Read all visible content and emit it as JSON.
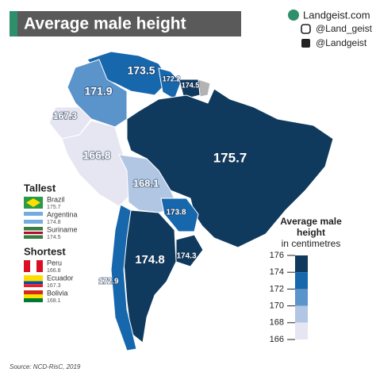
{
  "header": {
    "title": "Average male height"
  },
  "branding": {
    "site": "Landgeist.com",
    "instagram": "@Land_geist",
    "twitter": "@Landgeist"
  },
  "map": {
    "values": [
      173.5,
      172.2,
      174.5,
      171.9,
      167.3,
      166.8,
      175.7,
      168.1,
      173.8,
      174.8,
      174.3,
      172.9
    ]
  },
  "tallest": {
    "title": "Tallest",
    "entries": [
      {
        "name": "Brazil",
        "value": 175.7
      },
      {
        "name": "Argentina",
        "value": 174.8
      },
      {
        "name": "Suriname",
        "value": 174.5
      }
    ]
  },
  "shortest": {
    "title": "Shortest",
    "entries": [
      {
        "name": "Peru",
        "value": 166.8
      },
      {
        "name": "Ecuador",
        "value": 167.3
      },
      {
        "name": "Bolivia",
        "value": 168.1
      }
    ]
  },
  "legend": {
    "title": "Average male height",
    "subtitle": "in centimetres",
    "ticks": [
      176,
      174,
      172,
      170,
      168,
      166
    ],
    "colors": [
      "#0f3a5e",
      "#1767ad",
      "#5b93cb",
      "#b1c6e3",
      "#e6e6f2"
    ]
  },
  "source": "Source: NCD-RisC, 2019"
}
